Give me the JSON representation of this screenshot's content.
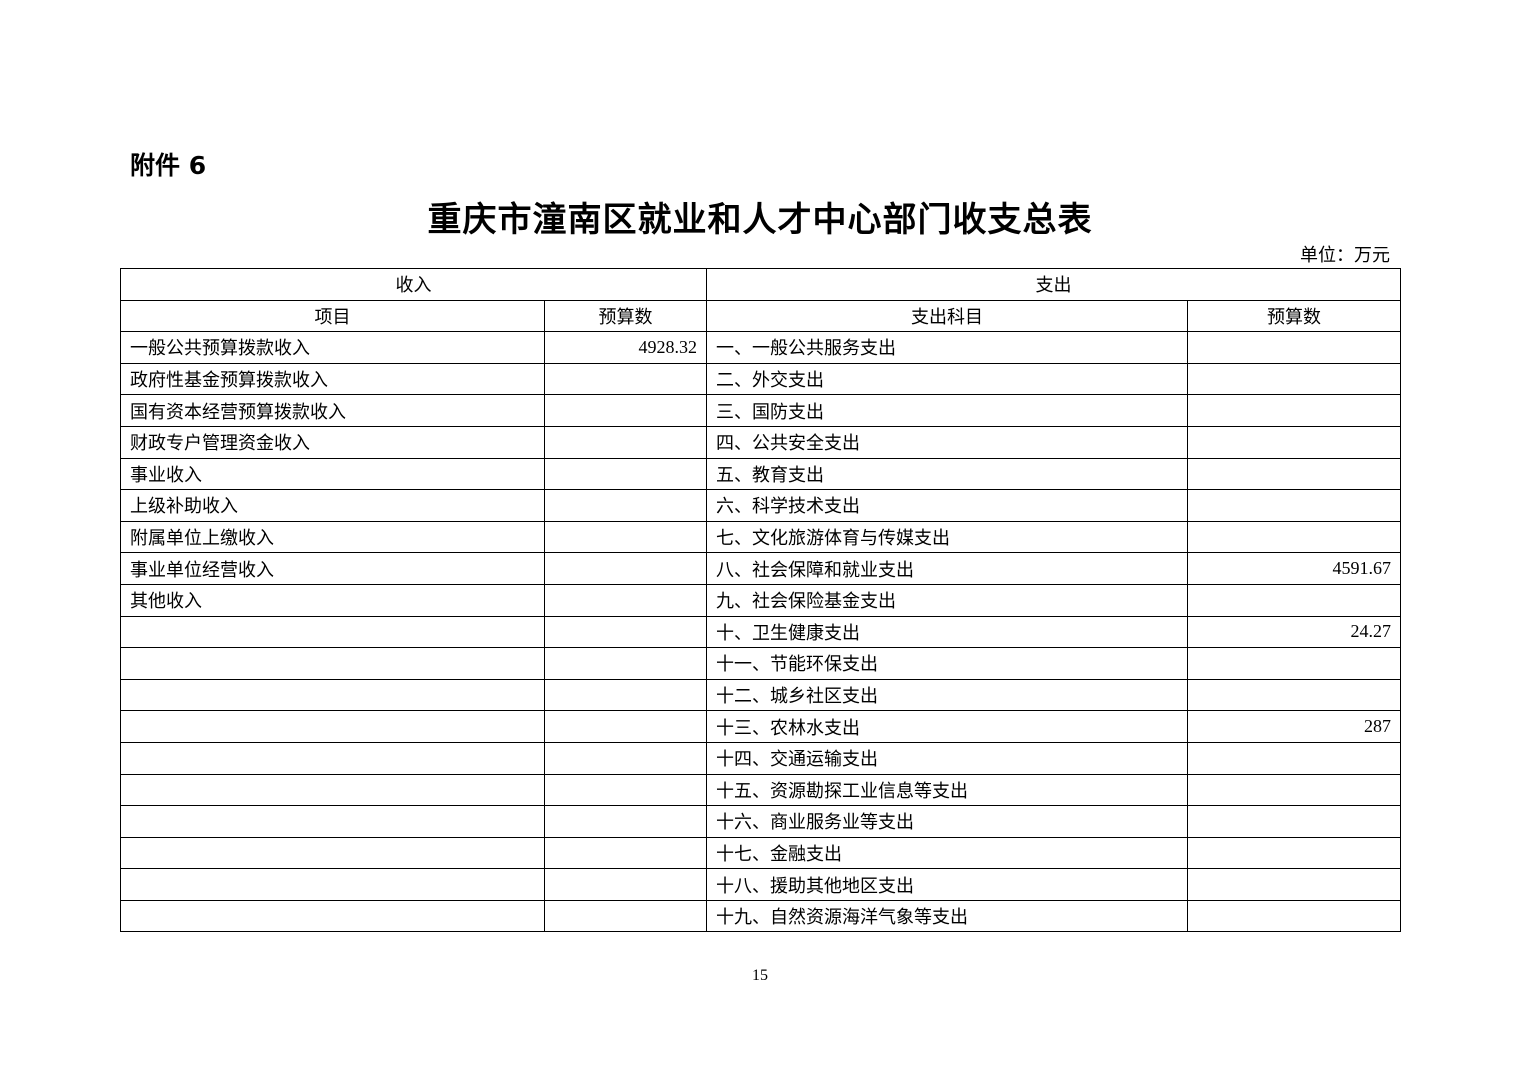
{
  "attachment": "附件 6",
  "title": "重庆市潼南区就业和人才中心部门收支总表",
  "unit": "单位：万元",
  "table": {
    "income_header": "收入",
    "expense_header": "支出",
    "columns": [
      "项目",
      "预算数",
      "支出科目",
      "预算数"
    ],
    "income": [
      {
        "item": "一般公共预算拨款收入",
        "amount": "4928.32"
      },
      {
        "item": "政府性基金预算拨款收入",
        "amount": ""
      },
      {
        "item": "国有资本经营预算拨款收入",
        "amount": ""
      },
      {
        "item": "财政专户管理资金收入",
        "amount": ""
      },
      {
        "item": "事业收入",
        "amount": ""
      },
      {
        "item": "上级补助收入",
        "amount": ""
      },
      {
        "item": "附属单位上缴收入",
        "amount": ""
      },
      {
        "item": "事业单位经营收入",
        "amount": ""
      },
      {
        "item": "其他收入",
        "amount": ""
      }
    ],
    "expense": [
      {
        "item": "一、一般公共服务支出",
        "amount": ""
      },
      {
        "item": "二、外交支出",
        "amount": ""
      },
      {
        "item": "三、国防支出",
        "amount": ""
      },
      {
        "item": "四、公共安全支出",
        "amount": ""
      },
      {
        "item": "五、教育支出",
        "amount": ""
      },
      {
        "item": "六、科学技术支出",
        "amount": ""
      },
      {
        "item": "七、文化旅游体育与传媒支出",
        "amount": ""
      },
      {
        "item": "八、社会保障和就业支出",
        "amount": "4591.67"
      },
      {
        "item": "九、社会保险基金支出",
        "amount": ""
      },
      {
        "item": "十、卫生健康支出",
        "amount": "24.27"
      },
      {
        "item": "十一、节能环保支出",
        "amount": ""
      },
      {
        "item": "十二、城乡社区支出",
        "amount": ""
      },
      {
        "item": "十三、农林水支出",
        "amount": "287"
      },
      {
        "item": "十四、交通运输支出",
        "amount": ""
      },
      {
        "item": "十五、资源勘探工业信息等支出",
        "amount": ""
      },
      {
        "item": "十六、商业服务业等支出",
        "amount": ""
      },
      {
        "item": "十七、金融支出",
        "amount": ""
      },
      {
        "item": "十八、援助其他地区支出",
        "amount": ""
      },
      {
        "item": "十九、自然资源海洋气象等支出",
        "amount": ""
      }
    ]
  },
  "page_number": "15"
}
